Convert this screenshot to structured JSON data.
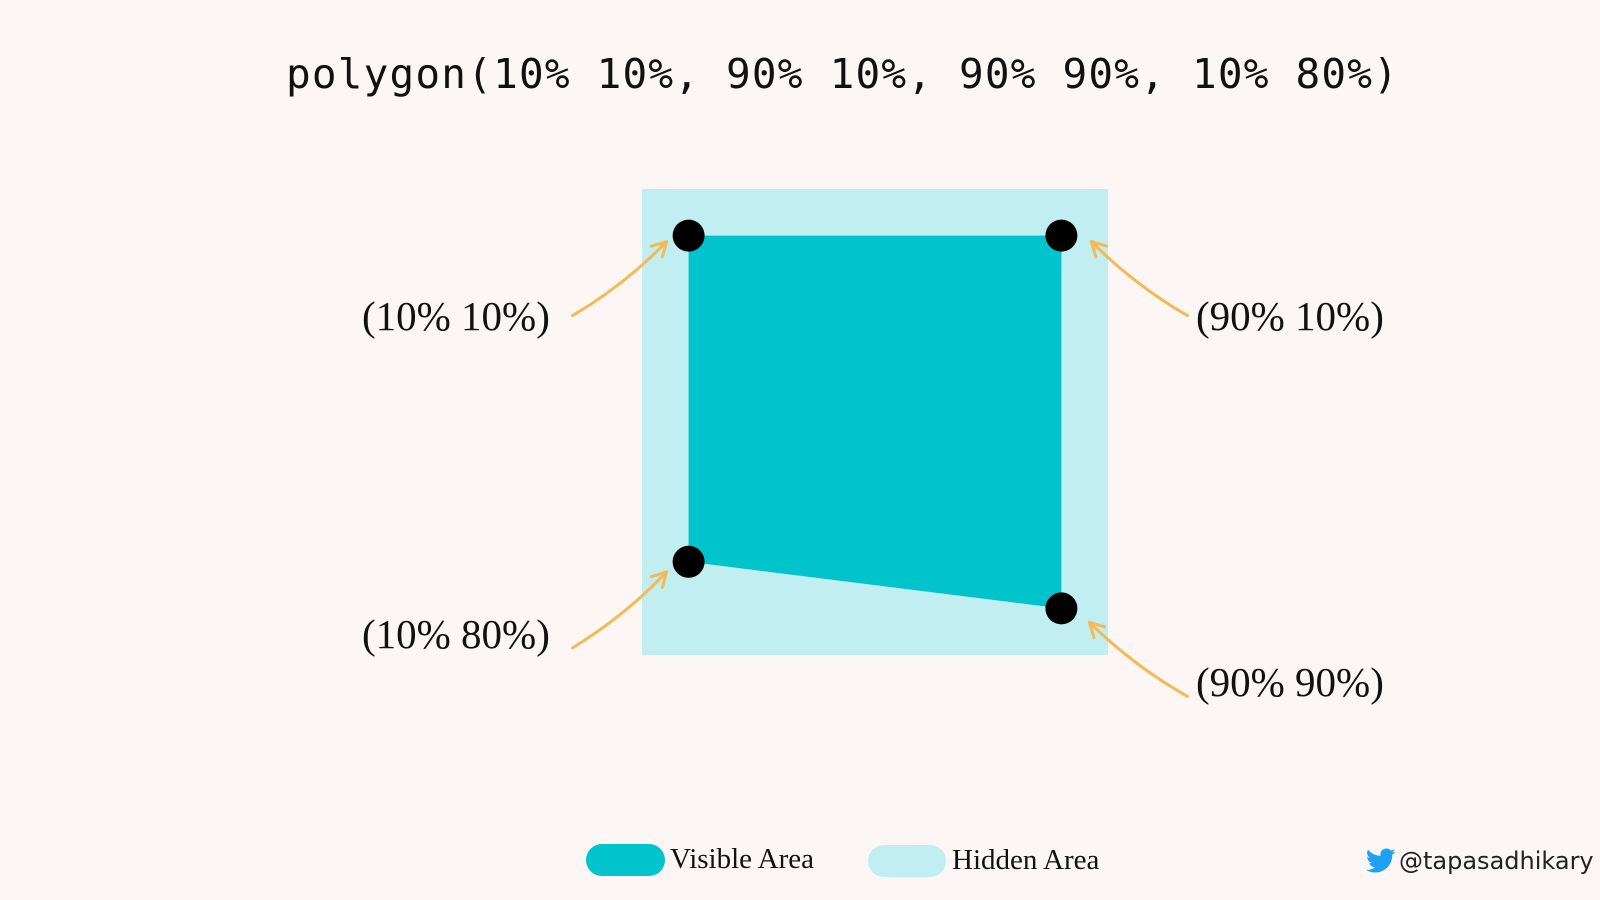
{
  "heading": "polygon(10% 10%, 90% 10%, 90% 90%, 10% 80%)",
  "box": {
    "hidden_color": "#c0eef1",
    "visible_color": "#00c3cc",
    "vertex_color": "#000000",
    "arrow_color": "#f5b955"
  },
  "vertices": [
    {
      "id": "tl",
      "x_pct": 10,
      "y_pct": 10,
      "label": "(10% 10%)"
    },
    {
      "id": "tr",
      "x_pct": 90,
      "y_pct": 10,
      "label": "(90% 10%)"
    },
    {
      "id": "br",
      "x_pct": 90,
      "y_pct": 90,
      "label": "(90% 90%)"
    },
    {
      "id": "bl",
      "x_pct": 10,
      "y_pct": 80,
      "label": "(10% 80%)"
    }
  ],
  "legend": {
    "visible_label": "Visible Area",
    "hidden_label": "Hidden Area"
  },
  "credit": {
    "icon": "twitter-bird-icon",
    "icon_color": "#1da1f2",
    "handle": "@tapasadhikary"
  }
}
